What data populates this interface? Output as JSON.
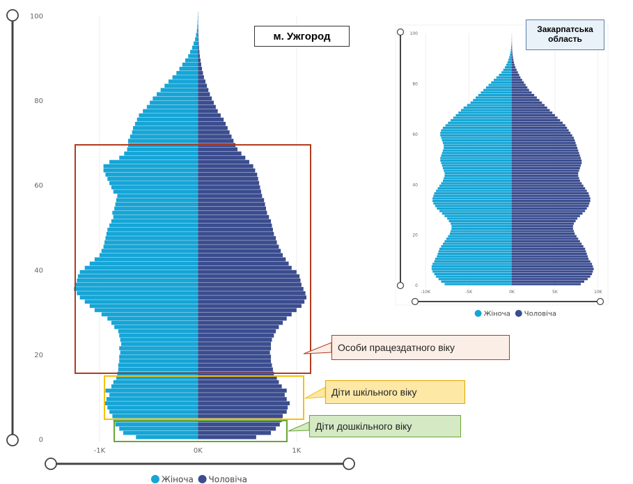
{
  "colors": {
    "female": "#16a5d6",
    "male": "#3b4d8f",
    "working_box": "#b23a1e",
    "school_box": "#f5c10b",
    "preschool_box": "#6aa637",
    "callout_working_fill": "#fbeee6",
    "callout_school_fill": "#fde8a6",
    "callout_preschool_fill": "#d4e9c4",
    "slider": "#444444",
    "grid": "#eeeeee"
  },
  "legend": {
    "female": "Жіноча",
    "male": "Чоловіча"
  },
  "annotations": {
    "working_age": "Особи працездатного віку",
    "school_age": "Діти шкільного віку",
    "preschool_age": "Діти дошкільного віку"
  },
  "chart_data": [
    {
      "type": "bar",
      "orientation": "horizontal",
      "title": "м. Ужгород",
      "x_tick_labels": [
        "-1K",
        "0K",
        "1K"
      ],
      "y_tick_labels": [
        "0",
        "20",
        "40",
        "60",
        "80",
        "100"
      ],
      "xlim": [
        -1300,
        1100
      ],
      "ylim": [
        0,
        100
      ],
      "grid": true,
      "legend_position": "bottom",
      "ages": [
        0,
        1,
        2,
        3,
        4,
        5,
        6,
        7,
        8,
        9,
        10,
        11,
        12,
        13,
        14,
        15,
        16,
        17,
        18,
        19,
        20,
        21,
        22,
        23,
        24,
        25,
        26,
        27,
        28,
        29,
        30,
        31,
        32,
        33,
        34,
        35,
        36,
        37,
        38,
        39,
        40,
        41,
        42,
        43,
        44,
        45,
        46,
        47,
        48,
        49,
        50,
        51,
        52,
        53,
        54,
        55,
        56,
        57,
        58,
        59,
        60,
        61,
        62,
        63,
        64,
        65,
        66,
        67,
        68,
        69,
        70,
        71,
        72,
        73,
        74,
        75,
        76,
        77,
        78,
        79,
        80,
        81,
        82,
        83,
        84,
        85,
        86,
        87,
        88,
        89,
        90,
        91,
        92,
        93,
        94,
        95,
        96,
        97,
        98,
        99,
        100
      ],
      "series": [
        {
          "name": "Жіноча",
          "values": [
            -630,
            -760,
            -800,
            -840,
            -860,
            -870,
            -900,
            -920,
            -950,
            -930,
            -900,
            -940,
            -880,
            -860,
            -830,
            -820,
            -810,
            -810,
            -800,
            -800,
            -790,
            -800,
            -780,
            -790,
            -800,
            -810,
            -850,
            -880,
            -920,
            -980,
            -1050,
            -1100,
            -1150,
            -1200,
            -1230,
            -1260,
            -1250,
            -1230,
            -1220,
            -1200,
            -1150,
            -1100,
            -1050,
            -1000,
            -980,
            -960,
            -950,
            -940,
            -930,
            -920,
            -900,
            -880,
            -860,
            -870,
            -850,
            -840,
            -830,
            -820,
            -860,
            -880,
            -900,
            -920,
            -940,
            -960,
            -960,
            -900,
            -800,
            -750,
            -720,
            -710,
            -710,
            -690,
            -670,
            -660,
            -640,
            -620,
            -600,
            -560,
            -520,
            -490,
            -460,
            -420,
            -380,
            -340,
            -300,
            -260,
            -220,
            -190,
            -160,
            -130,
            -100,
            -80,
            -60,
            -45,
            -30,
            -20,
            -12,
            -8,
            -5,
            -3,
            -2
          ]
        },
        {
          "name": "Чоловіча",
          "values": [
            590,
            740,
            790,
            830,
            850,
            860,
            900,
            910,
            930,
            900,
            880,
            900,
            850,
            820,
            800,
            770,
            760,
            750,
            740,
            740,
            730,
            740,
            740,
            750,
            770,
            790,
            820,
            860,
            900,
            950,
            1000,
            1050,
            1080,
            1100,
            1090,
            1070,
            1050,
            1040,
            1030,
            1000,
            950,
            920,
            890,
            860,
            840,
            820,
            800,
            790,
            770,
            760,
            750,
            740,
            720,
            700,
            690,
            680,
            670,
            650,
            640,
            630,
            620,
            610,
            600,
            580,
            560,
            520,
            480,
            440,
            400,
            380,
            360,
            340,
            320,
            300,
            280,
            260,
            230,
            200,
            180,
            160,
            140,
            120,
            105,
            90,
            75,
            60,
            50,
            40,
            32,
            25,
            18,
            14,
            10,
            7,
            5,
            4,
            3,
            2,
            1,
            1,
            1
          ]
        }
      ]
    },
    {
      "type": "bar",
      "orientation": "horizontal",
      "title": "Закарпатська область",
      "x_tick_labels": [
        "-10K",
        "-5K",
        "0K",
        "5K",
        "10K"
      ],
      "y_tick_labels": [
        "0",
        "20",
        "40",
        "60",
        "80",
        "100"
      ],
      "xlim": [
        -10500,
        10500
      ],
      "ylim": [
        0,
        100
      ],
      "grid": true,
      "legend_position": "bottom",
      "ages": [
        0,
        1,
        2,
        3,
        4,
        5,
        6,
        7,
        8,
        9,
        10,
        11,
        12,
        13,
        14,
        15,
        16,
        17,
        18,
        19,
        20,
        21,
        22,
        23,
        24,
        25,
        26,
        27,
        28,
        29,
        30,
        31,
        32,
        33,
        34,
        35,
        36,
        37,
        38,
        39,
        40,
        41,
        42,
        43,
        44,
        45,
        46,
        47,
        48,
        49,
        50,
        51,
        52,
        53,
        54,
        55,
        56,
        57,
        58,
        59,
        60,
        61,
        62,
        63,
        64,
        65,
        66,
        67,
        68,
        69,
        70,
        71,
        72,
        73,
        74,
        75,
        76,
        77,
        78,
        79,
        80,
        81,
        82,
        83,
        84,
        85,
        86,
        87,
        88,
        89,
        90,
        91,
        92,
        93,
        94,
        95,
        96,
        97,
        98,
        99,
        100
      ],
      "series": [
        {
          "name": "Жіноча",
          "values": [
            -7800,
            -8200,
            -8500,
            -8800,
            -9000,
            -9200,
            -9300,
            -9300,
            -9200,
            -9000,
            -8900,
            -8700,
            -8600,
            -8500,
            -8400,
            -8200,
            -8000,
            -7800,
            -7600,
            -7400,
            -7200,
            -7100,
            -7000,
            -7000,
            -7100,
            -7300,
            -7500,
            -7800,
            -8100,
            -8400,
            -8700,
            -8900,
            -9100,
            -9200,
            -9200,
            -9100,
            -9000,
            -8800,
            -8600,
            -8400,
            -8200,
            -8000,
            -7900,
            -7800,
            -7800,
            -7900,
            -8000,
            -8100,
            -8200,
            -8300,
            -8300,
            -8200,
            -8100,
            -8000,
            -7900,
            -7900,
            -8000,
            -8100,
            -8200,
            -8300,
            -8300,
            -8200,
            -8000,
            -7700,
            -7400,
            -7100,
            -6800,
            -6500,
            -6200,
            -5900,
            -5600,
            -5200,
            -4800,
            -4500,
            -4200,
            -3900,
            -3600,
            -3300,
            -3000,
            -2700,
            -2400,
            -2100,
            -1800,
            -1500,
            -1200,
            -1000,
            -800,
            -650,
            -500,
            -400,
            -300,
            -220,
            -160,
            -110,
            -80,
            -50,
            -30,
            -20,
            -10,
            -5,
            -2
          ]
        },
        {
          "name": "Чоловіча",
          "values": [
            8000,
            8400,
            8800,
            9100,
            9300,
            9400,
            9500,
            9400,
            9300,
            9100,
            8900,
            8800,
            8700,
            8600,
            8500,
            8300,
            8100,
            7900,
            7700,
            7500,
            7300,
            7200,
            7100,
            7100,
            7200,
            7400,
            7600,
            7900,
            8200,
            8500,
            8700,
            8900,
            9000,
            9100,
            9100,
            9000,
            8900,
            8700,
            8500,
            8300,
            8100,
            7900,
            7800,
            7700,
            7700,
            7800,
            7900,
            8000,
            8100,
            8100,
            8000,
            7900,
            7800,
            7700,
            7600,
            7500,
            7400,
            7300,
            7200,
            7000,
            6800,
            6600,
            6400,
            6200,
            5900,
            5600,
            5300,
            5000,
            4700,
            4400,
            4100,
            3800,
            3500,
            3200,
            2900,
            2600,
            2300,
            2000,
            1800,
            1600,
            1400,
            1200,
            1000,
            850,
            700,
            550,
            420,
            320,
            240,
            180,
            130,
            90,
            60,
            40,
            25,
            15,
            10,
            5,
            3,
            2,
            1
          ]
        }
      ]
    }
  ]
}
